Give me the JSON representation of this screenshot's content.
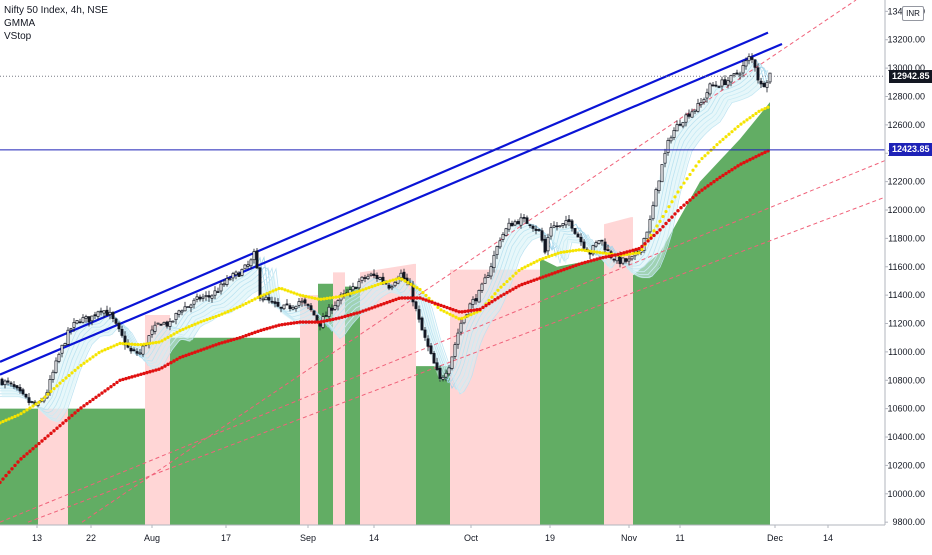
{
  "header": {
    "symbol_line": "Nifty 50 Index, 4h, NSE",
    "indicators": [
      "GMMA",
      "VStop"
    ],
    "currency": "INR"
  },
  "price_tags": {
    "last_price": "12942.85",
    "hline_price": "12423.85",
    "last_price_color": "#131722",
    "hline_color": "#1e22b7"
  },
  "chart_data": {
    "type": "candlestick",
    "title": "Nifty 50 Index, 4h, NSE",
    "x_axis_labels": [
      "13",
      "22",
      "Aug",
      "17",
      "Sep",
      "14",
      "Oct",
      "19",
      "Nov",
      "11",
      "Dec",
      "14"
    ],
    "y_axis_ticks": [
      9800,
      10000,
      10200,
      10400,
      10600,
      10800,
      11000,
      11200,
      11400,
      11600,
      11800,
      12000,
      12200,
      12400,
      12600,
      12800,
      13000,
      13200,
      13400
    ],
    "ylim": [
      9780,
      13480
    ],
    "grid": false,
    "colors": {
      "candles": "#131722",
      "vstop_up": "#5aa95c",
      "vstop_down": "#ffd2d2",
      "gmma_fast": "#d4f0f6",
      "ema_yellow": "#f5e400",
      "ema_red": "#e01010",
      "channel": "#0a14d6",
      "dashed_trend": "#f0627a",
      "hline": "#1e22b7"
    },
    "anchors": {
      "close": [
        [
          0,
          10800
        ],
        [
          12,
          10760
        ],
        [
          22,
          10690
        ],
        [
          30,
          10640
        ],
        [
          38,
          10620
        ],
        [
          46,
          10700
        ],
        [
          60,
          11000
        ],
        [
          70,
          11160
        ],
        [
          80,
          11230
        ],
        [
          90,
          11230
        ],
        [
          100,
          11310
        ],
        [
          110,
          11260
        ],
        [
          120,
          11130
        ],
        [
          130,
          11000
        ],
        [
          140,
          10990
        ],
        [
          150,
          11120
        ],
        [
          160,
          11210
        ],
        [
          170,
          11190
        ],
        [
          180,
          11300
        ],
        [
          190,
          11330
        ],
        [
          200,
          11380
        ],
        [
          210,
          11390
        ],
        [
          220,
          11450
        ],
        [
          230,
          11520
        ],
        [
          240,
          11560
        ],
        [
          250,
          11620
        ],
        [
          255,
          11700
        ],
        [
          260,
          11400
        ],
        [
          270,
          11350
        ],
        [
          280,
          11300
        ],
        [
          290,
          11320
        ],
        [
          300,
          11360
        ],
        [
          310,
          11300
        ],
        [
          320,
          11200
        ],
        [
          330,
          11300
        ],
        [
          340,
          11380
        ],
        [
          350,
          11420
        ],
        [
          360,
          11500
        ],
        [
          370,
          11540
        ],
        [
          380,
          11520
        ],
        [
          390,
          11460
        ],
        [
          400,
          11560
        ],
        [
          410,
          11450
        ],
        [
          420,
          11190
        ],
        [
          430,
          10990
        ],
        [
          440,
          10800
        ],
        [
          450,
          10920
        ],
        [
          460,
          11190
        ],
        [
          470,
          11330
        ],
        [
          480,
          11420
        ],
        [
          490,
          11590
        ],
        [
          500,
          11800
        ],
        [
          510,
          11900
        ],
        [
          520,
          11930
        ],
        [
          530,
          11910
        ],
        [
          540,
          11840
        ],
        [
          545,
          11700
        ],
        [
          550,
          11890
        ],
        [
          560,
          11880
        ],
        [
          570,
          11920
        ],
        [
          580,
          11790
        ],
        [
          590,
          11700
        ],
        [
          600,
          11800
        ],
        [
          610,
          11680
        ],
        [
          620,
          11640
        ],
        [
          630,
          11640
        ],
        [
          640,
          11720
        ],
        [
          650,
          11920
        ],
        [
          660,
          12260
        ],
        [
          670,
          12520
        ],
        [
          680,
          12620
        ],
        [
          690,
          12690
        ],
        [
          700,
          12740
        ],
        [
          710,
          12870
        ],
        [
          720,
          12890
        ],
        [
          730,
          12920
        ],
        [
          740,
          12980
        ],
        [
          750,
          13080
        ],
        [
          755,
          13020
        ],
        [
          760,
          12870
        ],
        [
          765,
          12900
        ],
        [
          770,
          12960
        ]
      ],
      "red_ema": [
        [
          0,
          10080
        ],
        [
          20,
          10240
        ],
        [
          40,
          10360
        ],
        [
          60,
          10480
        ],
        [
          80,
          10600
        ],
        [
          100,
          10700
        ],
        [
          120,
          10800
        ],
        [
          140,
          10840
        ],
        [
          160,
          10880
        ],
        [
          180,
          10960
        ],
        [
          200,
          11010
        ],
        [
          220,
          11060
        ],
        [
          240,
          11100
        ],
        [
          260,
          11150
        ],
        [
          280,
          11190
        ],
        [
          300,
          11210
        ],
        [
          320,
          11210
        ],
        [
          340,
          11240
        ],
        [
          360,
          11280
        ],
        [
          380,
          11330
        ],
        [
          400,
          11380
        ],
        [
          420,
          11380
        ],
        [
          440,
          11330
        ],
        [
          460,
          11280
        ],
        [
          480,
          11300
        ],
        [
          500,
          11390
        ],
        [
          520,
          11470
        ],
        [
          540,
          11520
        ],
        [
          560,
          11570
        ],
        [
          580,
          11620
        ],
        [
          600,
          11660
        ],
        [
          620,
          11690
        ],
        [
          640,
          11730
        ],
        [
          660,
          11860
        ],
        [
          680,
          12010
        ],
        [
          700,
          12130
        ],
        [
          720,
          12230
        ],
        [
          740,
          12320
        ],
        [
          760,
          12390
        ],
        [
          770,
          12423
        ]
      ],
      "yellow_ema": [
        [
          0,
          10500
        ],
        [
          20,
          10560
        ],
        [
          40,
          10650
        ],
        [
          60,
          10780
        ],
        [
          80,
          10900
        ],
        [
          100,
          11000
        ],
        [
          120,
          11060
        ],
        [
          140,
          11050
        ],
        [
          160,
          11070
        ],
        [
          180,
          11150
        ],
        [
          200,
          11210
        ],
        [
          220,
          11260
        ],
        [
          240,
          11320
        ],
        [
          260,
          11390
        ],
        [
          280,
          11450
        ],
        [
          300,
          11400
        ],
        [
          320,
          11370
        ],
        [
          340,
          11390
        ],
        [
          360,
          11430
        ],
        [
          380,
          11480
        ],
        [
          400,
          11520
        ],
        [
          420,
          11440
        ],
        [
          440,
          11300
        ],
        [
          460,
          11230
        ],
        [
          480,
          11290
        ],
        [
          500,
          11450
        ],
        [
          520,
          11580
        ],
        [
          540,
          11650
        ],
        [
          560,
          11700
        ],
        [
          580,
          11720
        ],
        [
          600,
          11700
        ],
        [
          620,
          11680
        ],
        [
          640,
          11700
        ],
        [
          660,
          11920
        ],
        [
          680,
          12150
        ],
        [
          700,
          12350
        ],
        [
          720,
          12480
        ],
        [
          740,
          12600
        ],
        [
          760,
          12700
        ],
        [
          770,
          12730
        ]
      ],
      "vstop": [
        [
          0,
          10600,
          "up"
        ],
        [
          38,
          10600,
          "down"
        ],
        [
          68,
          10600,
          "up"
        ],
        [
          145,
          11260,
          "down"
        ],
        [
          170,
          11100,
          "up"
        ],
        [
          300,
          11400,
          "down"
        ],
        [
          318,
          11480,
          "up"
        ],
        [
          333,
          11560,
          "down"
        ],
        [
          345,
          11460,
          "up"
        ],
        [
          360,
          11560,
          "down"
        ],
        [
          414,
          11620,
          "down"
        ],
        [
          416,
          10900,
          "up"
        ],
        [
          450,
          11580,
          "down"
        ],
        [
          540,
          11660,
          "up"
        ],
        [
          557,
          11600,
          "up"
        ],
        [
          603,
          11660,
          "up"
        ],
        [
          604,
          11900,
          "down"
        ],
        [
          631,
          11950,
          "down"
        ],
        [
          633,
          11540,
          "up"
        ],
        [
          660,
          11700,
          "up"
        ],
        [
          700,
          12200,
          "up"
        ],
        [
          740,
          12500,
          "up"
        ],
        [
          770,
          12760,
          "up"
        ]
      ]
    },
    "channel_lines": [
      {
        "from": [
          0,
          10840
        ],
        "to": [
          782,
          13170
        ]
      },
      {
        "from": [
          0,
          10930
        ],
        "to": [
          768,
          13250
        ]
      }
    ],
    "dashed_lines": [
      {
        "from": [
          82,
          9800
        ],
        "to": [
          856,
          13480
        ]
      },
      {
        "from": [
          0,
          9800
        ],
        "to": [
          896,
          12380
        ]
      },
      {
        "from": [
          28,
          9800
        ],
        "to": [
          896,
          12120
        ]
      }
    ],
    "hline": 12423.85,
    "last_price": 12942.85
  }
}
